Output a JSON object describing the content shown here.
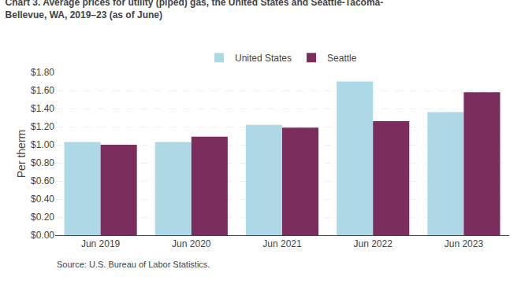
{
  "chart_data": {
    "type": "bar",
    "title": "Chart 3. Average prices for utility (piped) gas, the United States and Seattle-Tacoma-\nBellevue, WA, 2019–23 (as of June)",
    "ylabel": "Per therm",
    "categories": [
      "Jun 2019",
      "Jun 2020",
      "Jun 2021",
      "Jun 2022",
      "Jun 2023"
    ],
    "series": [
      {
        "name": "United States",
        "color": "#ADD8E6",
        "values": [
          1.03,
          1.03,
          1.22,
          1.7,
          1.36
        ]
      },
      {
        "name": "Seattle",
        "color": "#7B2D5E",
        "values": [
          1.0,
          1.09,
          1.19,
          1.26,
          1.58
        ]
      }
    ],
    "ylim": [
      0.0,
      1.8
    ],
    "yticks": [
      {
        "value": 0.0,
        "label": "$0.00"
      },
      {
        "value": 0.2,
        "label": "$0.20"
      },
      {
        "value": 0.4,
        "label": "$0.40"
      },
      {
        "value": 0.6,
        "label": "$0.60"
      },
      {
        "value": 0.8,
        "label": "$0.80"
      },
      {
        "value": 1.0,
        "label": "$1.00"
      },
      {
        "value": 1.2,
        "label": "$1.20"
      },
      {
        "value": 1.4,
        "label": "$1.40"
      },
      {
        "value": 1.6,
        "label": "$1.60"
      },
      {
        "value": 1.8,
        "label": "$1.80"
      }
    ],
    "annotations": [
      "Source: U.S. Bureau of Labor Statistics."
    ],
    "grid": true,
    "legend": "top"
  }
}
